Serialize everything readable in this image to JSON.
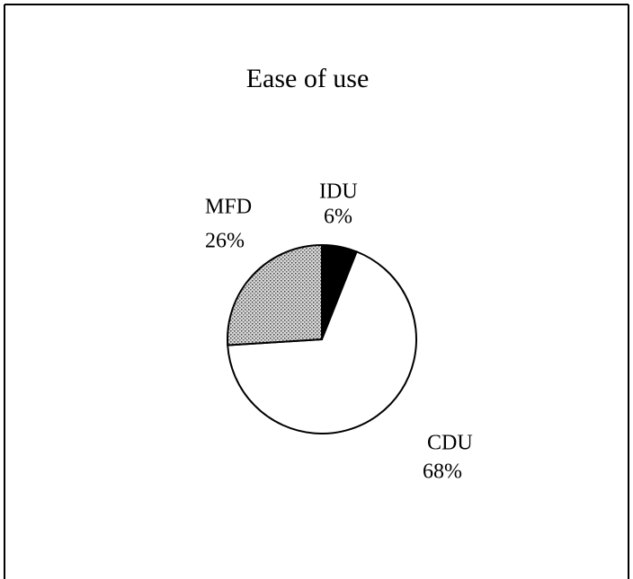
{
  "chart_data": {
    "type": "pie",
    "title": "Ease of use",
    "categories": [
      "IDU",
      "CDU",
      "MFD"
    ],
    "values": [
      6,
      68,
      26
    ],
    "value_labels": [
      "6%",
      "68%",
      "26%"
    ],
    "colors": [
      "#000000",
      "#ffffff",
      "#b5b5b5"
    ]
  }
}
